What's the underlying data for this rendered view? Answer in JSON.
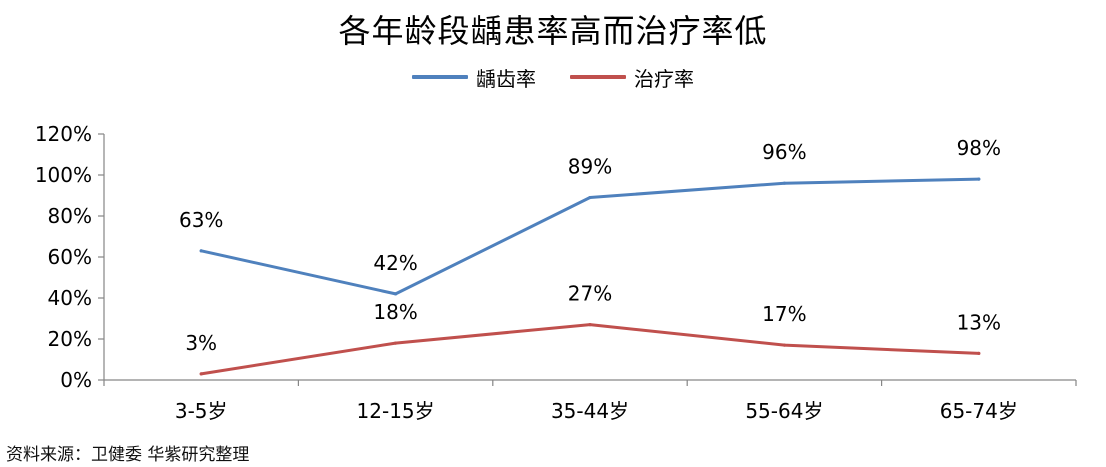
{
  "chart_data": {
    "type": "line",
    "title": "各年龄段龋患率高而治疗率低",
    "categories": [
      "3-5岁",
      "12-15岁",
      "35-44岁",
      "55-64岁",
      "65-74岁"
    ],
    "series": [
      {
        "name": "龋齿率",
        "values": [
          63,
          42,
          89,
          96,
          98
        ],
        "labels": [
          "63%",
          "42%",
          "89%",
          "96%",
          "98%"
        ],
        "color": "#4F81BD"
      },
      {
        "name": "治疗率",
        "values": [
          3,
          18,
          27,
          17,
          13
        ],
        "labels": [
          "3%",
          "18%",
          "27%",
          "17%",
          "13%"
        ],
        "color": "#C0504D"
      }
    ],
    "yticks": [
      "0%",
      "20%",
      "40%",
      "60%",
      "80%",
      "100%",
      "120%"
    ],
    "ylim": [
      0,
      120
    ],
    "grid": false,
    "legend_position": "top"
  },
  "source": "资料来源：卫健委 华紫研究整理"
}
